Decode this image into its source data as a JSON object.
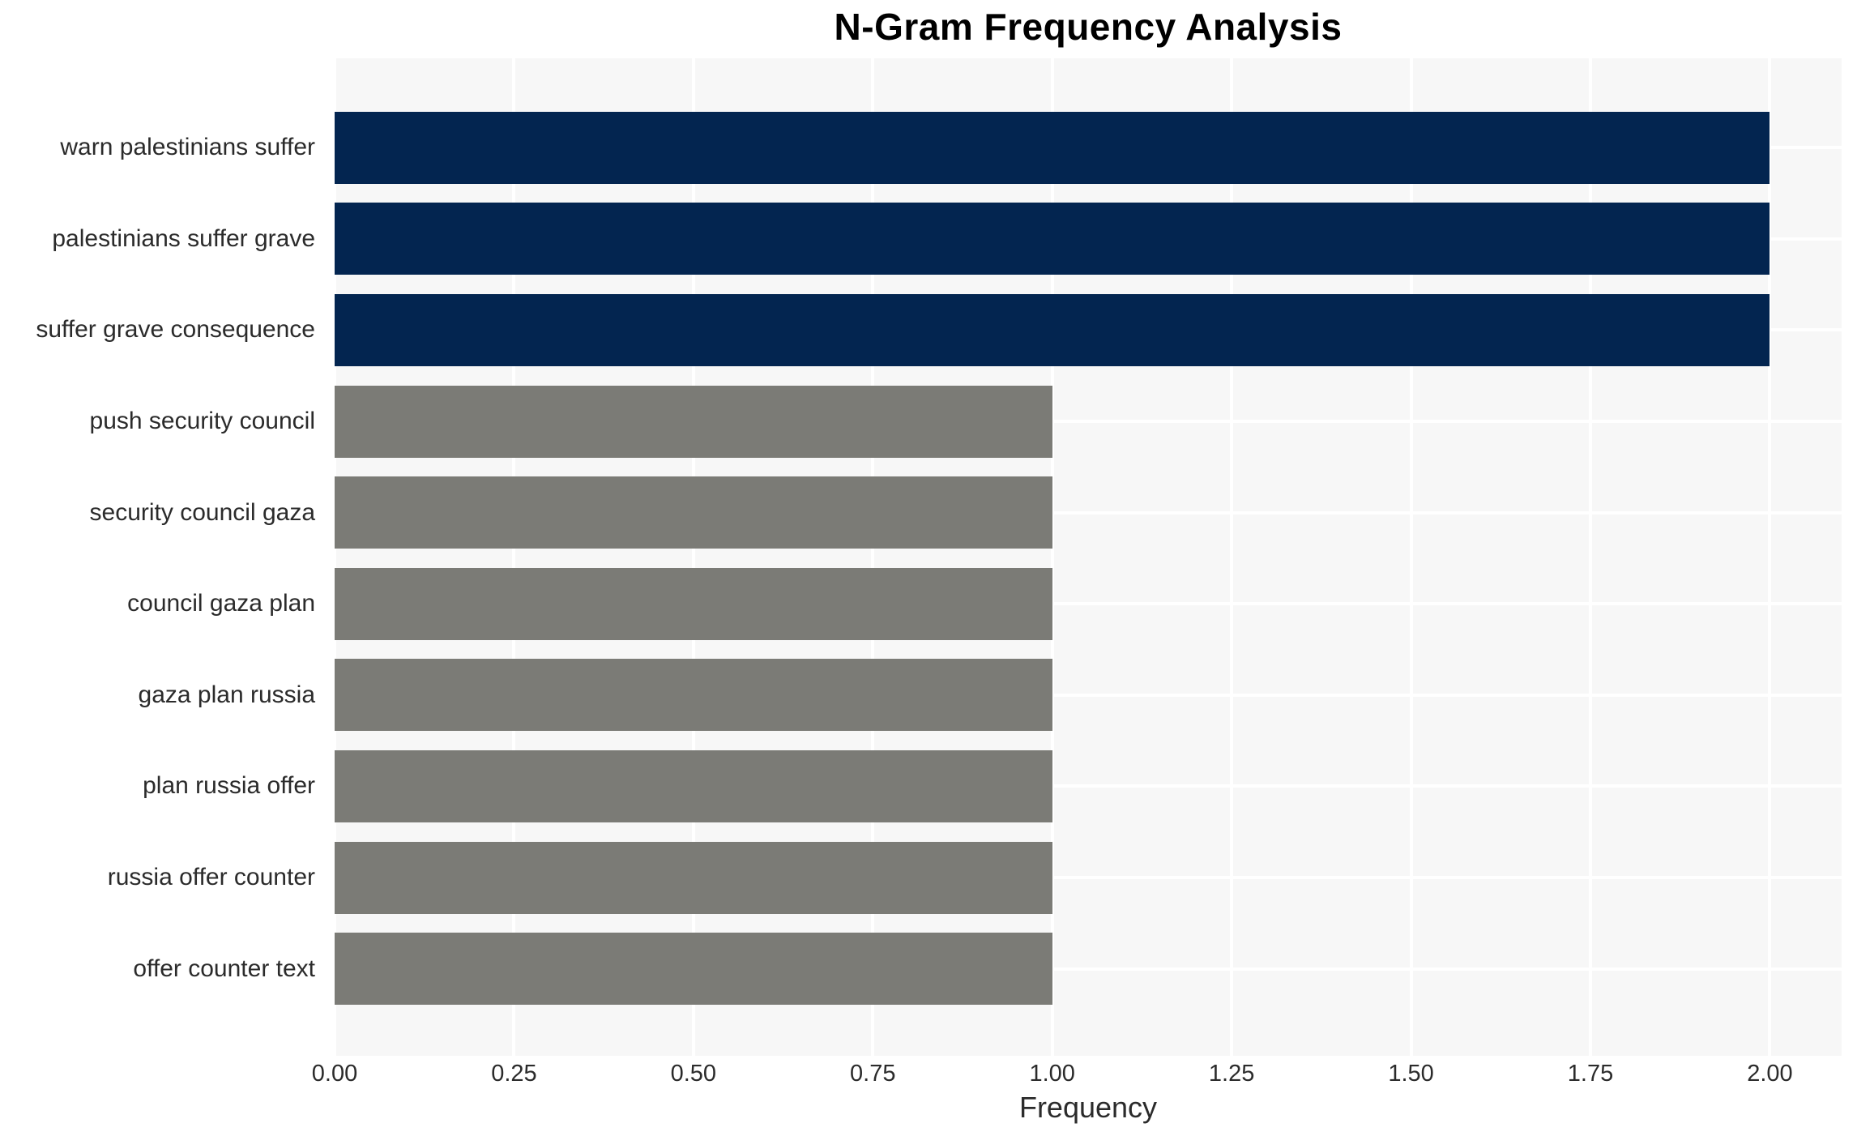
{
  "chart_data": {
    "type": "bar",
    "orientation": "horizontal",
    "title": "N-Gram Frequency Analysis",
    "xlabel": "Frequency",
    "ylabel": "",
    "categories": [
      "warn palestinians suffer",
      "palestinians suffer grave",
      "suffer grave consequence",
      "push security council",
      "security council gaza",
      "council gaza plan",
      "gaza plan russia",
      "plan russia offer",
      "russia offer counter",
      "offer counter text"
    ],
    "values": [
      2,
      2,
      2,
      1,
      1,
      1,
      1,
      1,
      1,
      1
    ],
    "bar_colors": [
      "#032550",
      "#032550",
      "#032550",
      "#7b7b76",
      "#7b7b76",
      "#7b7b76",
      "#7b7b76",
      "#7b7b76",
      "#7b7b76",
      "#7b7b76"
    ],
    "xlim": [
      0,
      2.1
    ],
    "xticks": [
      {
        "value": 0.0,
        "label": "0.00"
      },
      {
        "value": 0.25,
        "label": "0.25"
      },
      {
        "value": 0.5,
        "label": "0.50"
      },
      {
        "value": 0.75,
        "label": "0.75"
      },
      {
        "value": 1.0,
        "label": "1.00"
      },
      {
        "value": 1.25,
        "label": "1.25"
      },
      {
        "value": 1.5,
        "label": "1.50"
      },
      {
        "value": 1.75,
        "label": "1.75"
      },
      {
        "value": 2.0,
        "label": "2.00"
      }
    ],
    "grid": true,
    "legend": null,
    "colors": {
      "high_frequency_bar": "#032550",
      "low_frequency_bar": "#7b7b76",
      "plot_background": "#f7f7f7",
      "gridline": "#ffffff",
      "tick_text": "#2b2b2b",
      "title_text": "#000000"
    }
  }
}
